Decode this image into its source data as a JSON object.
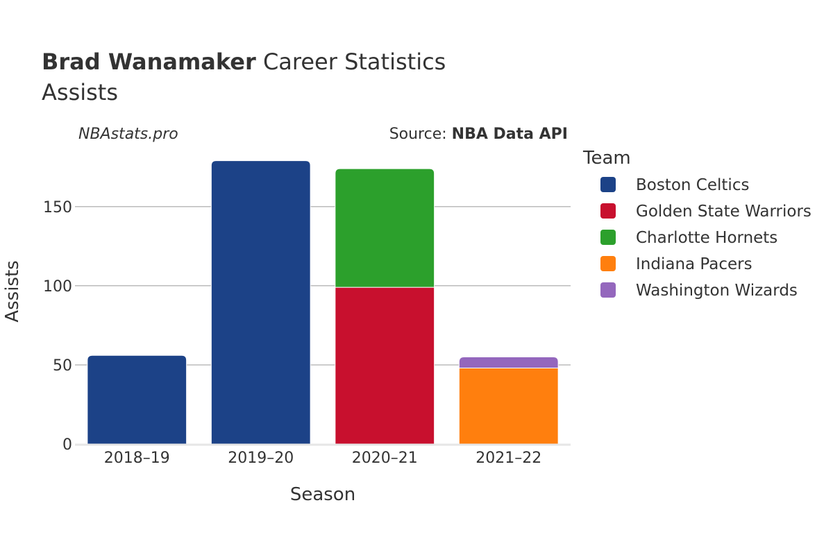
{
  "chart_data": {
    "type": "bar",
    "stacked": true,
    "title_bold": "Brad Wanamaker",
    "title_rest": " Career Statistics",
    "subtitle": "Assists",
    "annotation_left": "NBAstats.pro",
    "annotation_source_prefix": "Source: ",
    "annotation_source_bold": "NBA Data API",
    "xlabel": "Season",
    "ylabel": "Assists",
    "categories": [
      "2018–19",
      "2019–20",
      "2020–21",
      "2021–22"
    ],
    "ylim": [
      0,
      185
    ],
    "yticks": [
      0,
      50,
      100,
      150
    ],
    "legend_title": "Team",
    "legend_position": "right",
    "series": [
      {
        "name": "Boston Celtics",
        "color": "#1c4287",
        "values": [
          56,
          179,
          0,
          0
        ]
      },
      {
        "name": "Golden State Warriors",
        "color": "#c8102e",
        "values": [
          0,
          0,
          99,
          0
        ]
      },
      {
        "name": "Charlotte Hornets",
        "color": "#2ca02c",
        "values": [
          0,
          0,
          75,
          0
        ]
      },
      {
        "name": "Indiana Pacers",
        "color": "#ff7f0e",
        "values": [
          0,
          0,
          0,
          48
        ]
      },
      {
        "name": "Washington Wizards",
        "color": "#9467bd",
        "values": [
          0,
          0,
          0,
          7
        ]
      }
    ]
  }
}
